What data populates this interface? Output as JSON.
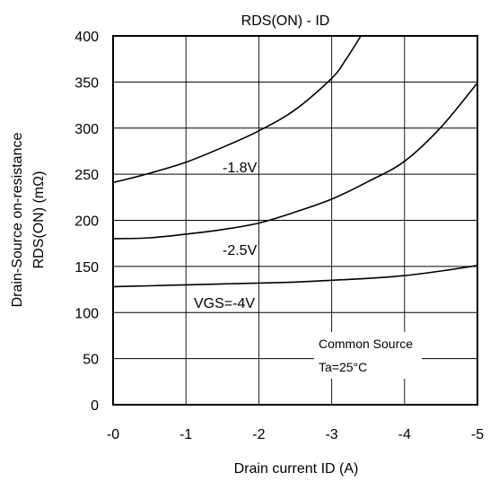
{
  "chart_data": {
    "type": "line",
    "title": "RDS(ON) - ID",
    "xlabel": "Drain current ID (A)",
    "ylabel_lines": [
      "Drain-Source on-resistance",
      "RDS(ON) (mΩ)"
    ],
    "xlim": [
      0,
      -5
    ],
    "ylim": [
      0,
      400
    ],
    "x_ticks": [
      0,
      -1,
      -2,
      -3,
      -4,
      -5
    ],
    "x_tick_labels": [
      "-0",
      "-1",
      "-2",
      "-3",
      "-4",
      "-5"
    ],
    "y_ticks": [
      0,
      50,
      100,
      150,
      200,
      250,
      300,
      350,
      400
    ],
    "y_tick_labels": [
      "0",
      "50",
      "100",
      "150",
      "200",
      "250",
      "300",
      "350",
      "400"
    ],
    "grid": true,
    "series": [
      {
        "name": "-1.8V",
        "x": [
          0,
          -0.5,
          -1.0,
          -1.5,
          -2.0,
          -2.5,
          -3.0,
          -3.2,
          -3.4
        ],
        "y": [
          241,
          251,
          263,
          279,
          297,
          320,
          354,
          375,
          400
        ]
      },
      {
        "name": "-2.5V",
        "x": [
          0,
          -0.5,
          -1.0,
          -1.5,
          -2.0,
          -2.5,
          -3.0,
          -3.5,
          -4.0,
          -4.5,
          -5.0
        ],
        "y": [
          180,
          181,
          185,
          190,
          197,
          209,
          223,
          242,
          264,
          301,
          349
        ]
      },
      {
        "name": "VGS=-4V",
        "x": [
          0,
          -0.5,
          -1.0,
          -1.5,
          -2.0,
          -2.5,
          -3.0,
          -3.5,
          -4.0,
          -4.5,
          -5.0
        ],
        "y": [
          128,
          129,
          130,
          131,
          132,
          133,
          135,
          137,
          140,
          145,
          151
        ]
      }
    ],
    "annotations": [
      "Common Source",
      "Ta=25°C"
    ]
  }
}
